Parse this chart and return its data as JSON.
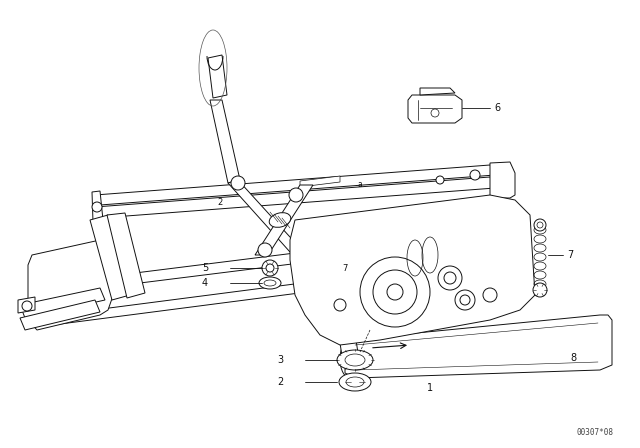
{
  "bg_color": "#ffffff",
  "line_color": "#111111",
  "label_color": "#111111",
  "fig_width": 6.4,
  "fig_height": 4.48,
  "dpi": 100,
  "watermark": "00307*08",
  "label_fontsize": 7.0,
  "leader_lw": 0.6,
  "draw_lw": 0.7,
  "thick_lw": 1.4
}
